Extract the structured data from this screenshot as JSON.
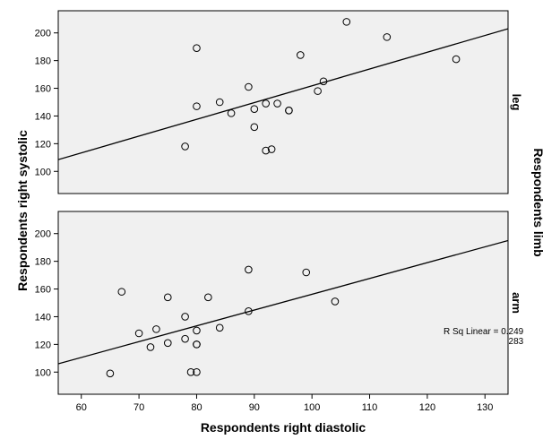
{
  "chart_data": {
    "type": "scatter",
    "xlabel": "Respondents right diastolic",
    "ylabel": "Respondents right systolic",
    "facet_label": "Respondents limb",
    "xlim": [
      56,
      134
    ],
    "x_ticks": [
      60,
      70,
      80,
      90,
      100,
      110,
      120,
      130
    ],
    "ylim": [
      84,
      216
    ],
    "y_ticks": [
      100,
      120,
      140,
      160,
      180,
      200
    ],
    "grid": false,
    "panels": [
      {
        "name": "leg",
        "r_sq_label": "R Sq Linear = 0.283",
        "points": [
          {
            "x": 106,
            "y": 208
          },
          {
            "x": 113,
            "y": 197
          },
          {
            "x": 80,
            "y": 189
          },
          {
            "x": 98,
            "y": 184
          },
          {
            "x": 125,
            "y": 181
          },
          {
            "x": 102,
            "y": 165
          },
          {
            "x": 89,
            "y": 161
          },
          {
            "x": 101,
            "y": 158
          },
          {
            "x": 84,
            "y": 150
          },
          {
            "x": 92,
            "y": 149
          },
          {
            "x": 94,
            "y": 149
          },
          {
            "x": 80,
            "y": 147
          },
          {
            "x": 90,
            "y": 145
          },
          {
            "x": 96,
            "y": 144
          },
          {
            "x": 96,
            "y": 144
          },
          {
            "x": 86,
            "y": 142
          },
          {
            "x": 90,
            "y": 132
          },
          {
            "x": 78,
            "y": 118
          },
          {
            "x": 93,
            "y": 116
          },
          {
            "x": 92,
            "y": 115
          }
        ],
        "fit_line": [
          {
            "x": 56,
            "y": 108.5
          },
          {
            "x": 134,
            "y": 203
          }
        ]
      },
      {
        "name": "arm",
        "r_sq_label": "R Sq Linear = 0.249",
        "points": [
          {
            "x": 89,
            "y": 174
          },
          {
            "x": 99,
            "y": 172
          },
          {
            "x": 67,
            "y": 158
          },
          {
            "x": 75,
            "y": 154
          },
          {
            "x": 82,
            "y": 154
          },
          {
            "x": 104,
            "y": 151
          },
          {
            "x": 89,
            "y": 144
          },
          {
            "x": 78,
            "y": 140
          },
          {
            "x": 84,
            "y": 132
          },
          {
            "x": 73,
            "y": 131
          },
          {
            "x": 80,
            "y": 130
          },
          {
            "x": 70,
            "y": 128
          },
          {
            "x": 78,
            "y": 124
          },
          {
            "x": 75,
            "y": 121
          },
          {
            "x": 80,
            "y": 120
          },
          {
            "x": 80,
            "y": 120
          },
          {
            "x": 72,
            "y": 118
          },
          {
            "x": 79,
            "y": 100
          },
          {
            "x": 80,
            "y": 100
          },
          {
            "x": 65,
            "y": 99
          }
        ],
        "fit_line": [
          {
            "x": 56,
            "y": 106
          },
          {
            "x": 134,
            "y": 195
          }
        ]
      }
    ]
  }
}
